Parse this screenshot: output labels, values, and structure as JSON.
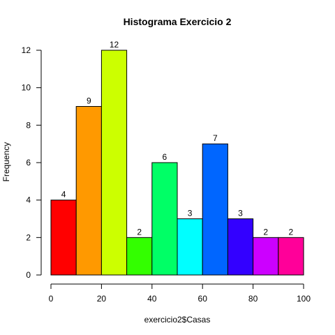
{
  "chart_data": {
    "type": "bar",
    "title": "Histograma Exercicio 2",
    "xlabel": "exercicio2$Casas",
    "ylabel": "Frequency",
    "bins": [
      {
        "start": 0,
        "end": 10,
        "count": 4,
        "color": "#FF0000"
      },
      {
        "start": 10,
        "end": 20,
        "count": 9,
        "color": "#FF9900"
      },
      {
        "start": 20,
        "end": 30,
        "count": 12,
        "color": "#CCFF00"
      },
      {
        "start": 30,
        "end": 40,
        "count": 2,
        "color": "#33FF00"
      },
      {
        "start": 40,
        "end": 50,
        "count": 6,
        "color": "#00FF66"
      },
      {
        "start": 50,
        "end": 60,
        "count": 3,
        "color": "#00FFFF"
      },
      {
        "start": 60,
        "end": 70,
        "count": 7,
        "color": "#0066FF"
      },
      {
        "start": 70,
        "end": 80,
        "count": 3,
        "color": "#3300FF"
      },
      {
        "start": 80,
        "end": 90,
        "count": 2,
        "color": "#CC00FF"
      },
      {
        "start": 90,
        "end": 100,
        "count": 2,
        "color": "#FF0099"
      }
    ],
    "xlim": [
      0,
      100
    ],
    "ylim": [
      0,
      12
    ],
    "xticks": [
      0,
      20,
      40,
      60,
      80,
      100
    ],
    "yticks": [
      0,
      2,
      4,
      6,
      8,
      10,
      12
    ],
    "grid": false,
    "legend": "none"
  }
}
